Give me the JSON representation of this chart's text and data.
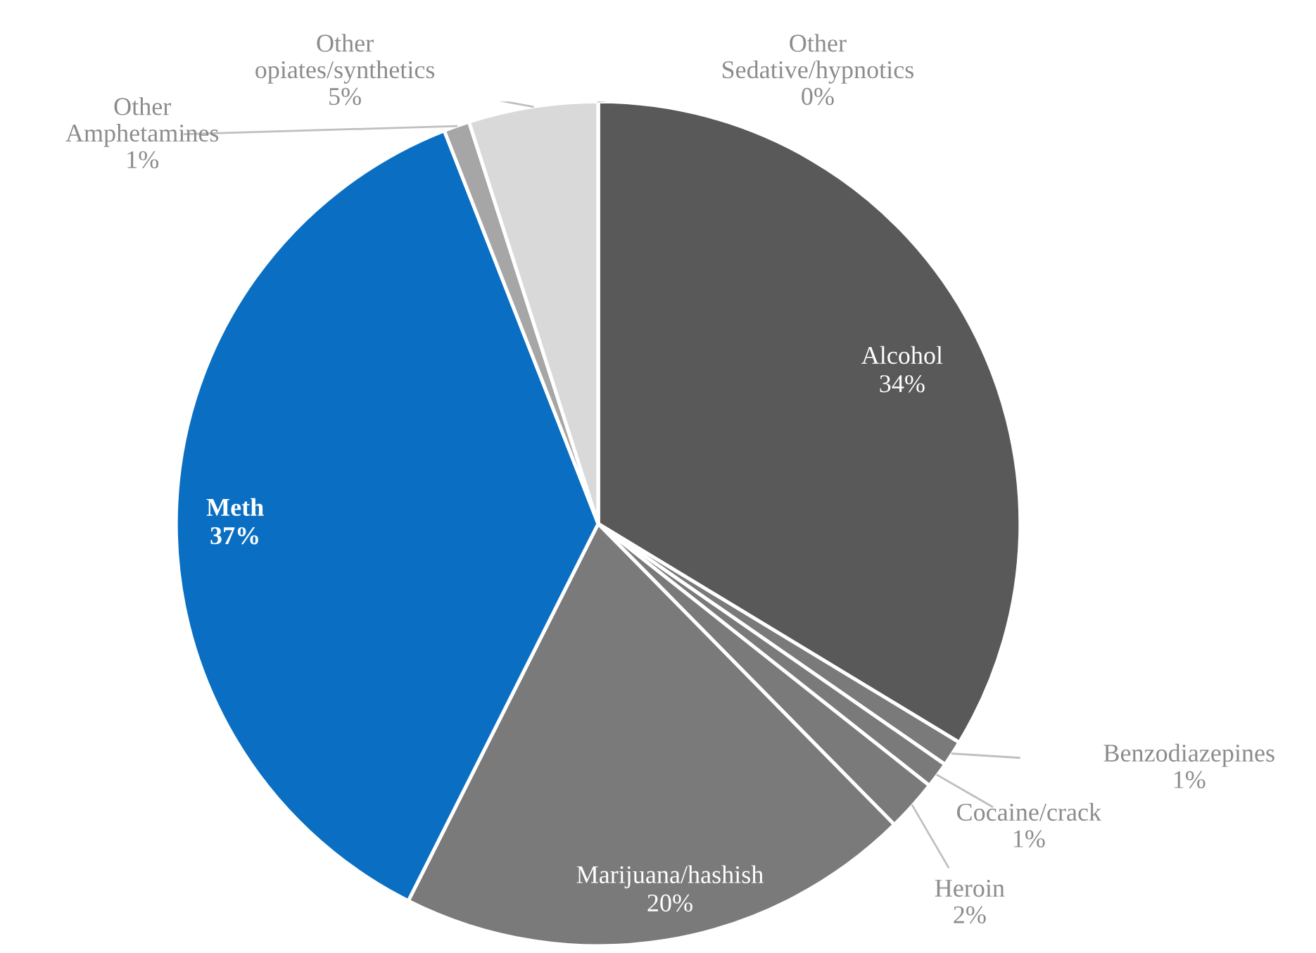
{
  "chart_data": {
    "type": "pie",
    "categories": [
      "Alcohol",
      "Benzodiazepines",
      "Cocaine/crack",
      "Heroin",
      "Marijuana/hashish",
      "Meth",
      "Other\nAmphetamines",
      "Other\nopiates/synthetics",
      "Other\nSedative/hypnotics"
    ],
    "values": [
      34,
      1,
      1,
      2,
      20,
      37,
      1,
      5,
      0
    ],
    "colors": [
      "#595959",
      "#7a7a7a",
      "#7a7a7a",
      "#7a7a7a",
      "#7a7a7a",
      "#0a6fc2",
      "#a6a6a6",
      "#d9d9d9",
      "#efefef"
    ],
    "value_labels": [
      "34%",
      "1%",
      "1%",
      "2%",
      "20%",
      "37%",
      "1%",
      "5%",
      "0%"
    ]
  }
}
